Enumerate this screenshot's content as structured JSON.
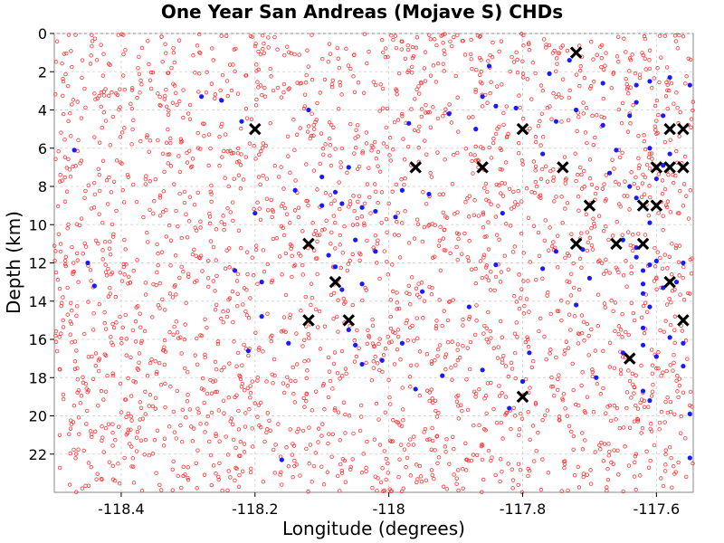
{
  "chart_data": {
    "type": "scatter",
    "title": "One Year San Andreas (Mojave S) CHDs",
    "xlabel": "Longitude (degrees)",
    "ylabel": "Depth (km)",
    "xlim": [
      -118.5,
      -117.545
    ],
    "ylim": [
      24,
      0
    ],
    "y_inverted": true,
    "grid": true,
    "x_ticks": [
      -118.4,
      -118.2,
      -118.0,
      -117.8,
      -117.6
    ],
    "x_tick_labels": [
      "-118.4",
      "-118.2",
      "-118",
      "-117.8",
      "-117.6"
    ],
    "y_ticks": [
      0,
      2,
      4,
      6,
      8,
      10,
      12,
      14,
      16,
      18,
      20,
      22
    ],
    "y_tick_labels": [
      "0",
      "2",
      "4",
      "6",
      "8",
      "10",
      "12",
      "14",
      "16",
      "18",
      "20",
      "22"
    ],
    "series": [
      {
        "marker": "open-circle",
        "color": "#ff3333",
        "count": 2600
      },
      {
        "marker": "filled-circle",
        "color": "#1a1aff",
        "points": [
          [
            -118.47,
            6.1
          ],
          [
            -118.45,
            12.0
          ],
          [
            -118.44,
            13.2
          ],
          [
            -118.28,
            3.3
          ],
          [
            -118.25,
            3.5
          ],
          [
            -118.23,
            12.4
          ],
          [
            -118.22,
            4.6
          ],
          [
            -118.21,
            16.6
          ],
          [
            -118.2,
            9.4
          ],
          [
            -118.19,
            13.0
          ],
          [
            -118.19,
            14.8
          ],
          [
            -118.16,
            22.3
          ],
          [
            -118.15,
            16.2
          ],
          [
            -118.14,
            8.2
          ],
          [
            -118.12,
            4.0
          ],
          [
            -118.1,
            7.5
          ],
          [
            -118.1,
            9.0
          ],
          [
            -118.09,
            11.6
          ],
          [
            -118.08,
            8.3
          ],
          [
            -118.08,
            12.2
          ],
          [
            -118.07,
            8.9
          ],
          [
            -118.07,
            13.4
          ],
          [
            -118.06,
            7.0
          ],
          [
            -118.06,
            15.5
          ],
          [
            -118.05,
            10.8
          ],
          [
            -118.05,
            16.3
          ],
          [
            -118.04,
            9.1
          ],
          [
            -118.04,
            13.1
          ],
          [
            -118.04,
            17.3
          ],
          [
            -118.02,
            9.3
          ],
          [
            -118.02,
            11.4
          ],
          [
            -118.01,
            17.1
          ],
          [
            -117.99,
            9.6
          ],
          [
            -117.98,
            16.2
          ],
          [
            -117.98,
            8.2
          ],
          [
            -117.97,
            4.7
          ],
          [
            -117.96,
            18.6
          ],
          [
            -117.95,
            13.5
          ],
          [
            -117.94,
            8.4
          ],
          [
            -117.92,
            17.9
          ],
          [
            -117.91,
            4.2
          ],
          [
            -117.88,
            14.3
          ],
          [
            -117.87,
            5.0
          ],
          [
            -117.86,
            17.6
          ],
          [
            -117.86,
            3.3
          ],
          [
            -117.85,
            1.7
          ],
          [
            -117.84,
            3.8
          ],
          [
            -117.84,
            12.1
          ],
          [
            -117.83,
            9.4
          ],
          [
            -117.82,
            19.6
          ],
          [
            -117.81,
            3.9
          ],
          [
            -117.8,
            18.2
          ],
          [
            -117.79,
            16.7
          ],
          [
            -117.77,
            12.3
          ],
          [
            -117.77,
            6.3
          ],
          [
            -117.76,
            2.1
          ],
          [
            -117.75,
            11.4
          ],
          [
            -117.75,
            4.6
          ],
          [
            -117.73,
            1.4
          ],
          [
            -117.72,
            4.0
          ],
          [
            -117.72,
            14.2
          ],
          [
            -117.71,
            11.3
          ],
          [
            -117.7,
            12.8
          ],
          [
            -117.69,
            18.0
          ],
          [
            -117.68,
            2.6
          ],
          [
            -117.68,
            4.8
          ],
          [
            -117.67,
            7.3
          ],
          [
            -117.66,
            6.1
          ],
          [
            -117.65,
            16.7
          ],
          [
            -117.65,
            10.8
          ],
          [
            -117.64,
            8.0
          ],
          [
            -117.64,
            4.3
          ],
          [
            -117.63,
            2.7
          ],
          [
            -117.63,
            3.6
          ],
          [
            -117.63,
            8.6
          ],
          [
            -117.63,
            11.2
          ],
          [
            -117.63,
            11.7
          ],
          [
            -117.62,
            12.4
          ],
          [
            -117.62,
            13.1
          ],
          [
            -117.62,
            13.6
          ],
          [
            -117.62,
            15.4
          ],
          [
            -117.62,
            16.3
          ],
          [
            -117.62,
            18.7
          ],
          [
            -117.61,
            12.1
          ],
          [
            -117.61,
            2.5
          ],
          [
            -117.61,
            6.0
          ],
          [
            -117.61,
            9.9
          ],
          [
            -117.61,
            14.3
          ],
          [
            -117.61,
            19.2
          ],
          [
            -117.6,
            7.6
          ],
          [
            -117.6,
            11.9
          ],
          [
            -117.6,
            16.9
          ],
          [
            -117.59,
            4.3
          ],
          [
            -117.59,
            6.9
          ],
          [
            -117.59,
            13.3
          ],
          [
            -117.58,
            6.3
          ],
          [
            -117.58,
            2.3
          ],
          [
            -117.58,
            15.9
          ],
          [
            -117.57,
            13.0
          ],
          [
            -117.56,
            12.0
          ],
          [
            -117.56,
            17.4
          ],
          [
            -117.55,
            2.7
          ],
          [
            -117.55,
            22.2
          ],
          [
            -117.55,
            19.9
          ],
          [
            -117.56,
            16.2
          ]
        ]
      },
      {
        "marker": "x",
        "color": "#000000",
        "points": [
          [
            -118.2,
            5
          ],
          [
            -118.12,
            11
          ],
          [
            -118.08,
            13
          ],
          [
            -118.12,
            15
          ],
          [
            -118.06,
            15
          ],
          [
            -117.96,
            7
          ],
          [
            -117.86,
            7
          ],
          [
            -117.8,
            5
          ],
          [
            -117.8,
            19
          ],
          [
            -117.74,
            7
          ],
          [
            -117.72,
            1
          ],
          [
            -117.72,
            11
          ],
          [
            -117.7,
            9
          ],
          [
            -117.66,
            11
          ],
          [
            -117.64,
            17
          ],
          [
            -117.62,
            9
          ],
          [
            -117.62,
            11
          ],
          [
            -117.6,
            9
          ],
          [
            -117.6,
            7
          ],
          [
            -117.58,
            7
          ],
          [
            -117.58,
            5
          ],
          [
            -117.58,
            13
          ],
          [
            -117.56,
            5
          ],
          [
            -117.56,
            7
          ],
          [
            -117.56,
            15
          ]
        ]
      }
    ]
  }
}
